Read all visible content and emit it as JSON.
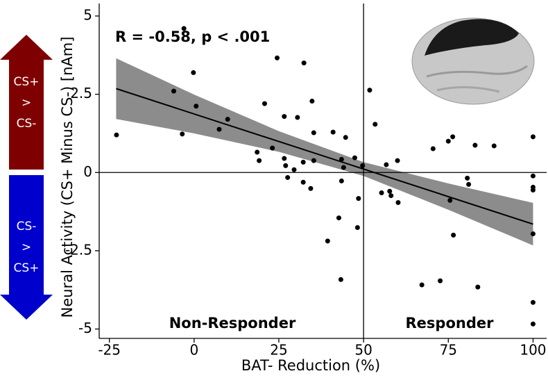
{
  "chart_data": {
    "type": "scatter",
    "annotation": "R = -0.58, p < .001",
    "xlabel": "BAT- Reduction (%)",
    "ylabel": "Neural Activity (CS+ Minus CS-) [nAm]",
    "region_labels": [
      "Non-Responder",
      "Responder"
    ],
    "arrows": [
      {
        "lines": [
          "CS+",
          ">",
          "CS-"
        ],
        "color": "#7f0000"
      },
      {
        "lines": [
          "CS-",
          ">",
          "CS+"
        ],
        "color": "#0000cc"
      }
    ],
    "color": "#000000",
    "band_color": "#8c8c8c",
    "xlim": [
      -28,
      104
    ],
    "ylim": [
      -5.3,
      5.4
    ],
    "xticks": [
      -25,
      0,
      25,
      50,
      75,
      100
    ],
    "yticks": [
      5,
      2.5,
      0,
      -2.5,
      -5
    ],
    "reference_x": 50,
    "reference_y": 0,
    "fit": {
      "x": [
        -23,
        100
      ],
      "y": [
        2.68,
        -1.65
      ]
    },
    "confidence_band": {
      "x": [
        -23,
        0,
        25,
        50,
        75,
        100
      ],
      "upper": [
        3.65,
        2.49,
        1.32,
        0.33,
        -0.35,
        -0.97
      ],
      "lower": [
        1.71,
        1.25,
        0.66,
        -0.11,
        -1.19,
        -2.33
      ]
    },
    "x": [
      -22.9,
      -6,
      -3.5,
      -0.2,
      0.6,
      -3,
      7.4,
      9.9,
      18.6,
      19.2,
      20.8,
      23.1,
      24.5,
      26.6,
      26.6,
      27,
      27.6,
      29.5,
      30.5,
      32.2,
      32.2,
      32.4,
      34.4,
      34.8,
      35.3,
      35.3,
      39.4,
      41,
      42.7,
      43.5,
      43.5,
      43.3,
      44.1,
      44.7,
      47.4,
      48.2,
      48.5,
      49.7,
      51.8,
      53.4,
      55.3,
      56.7,
      57.7,
      58.1,
      60,
      60.2,
      67.2,
      70.5,
      72.6,
      75,
      76.3,
      75.5,
      76.5,
      80.6,
      81,
      82.9,
      83.7,
      88.5,
      100,
      100,
      100,
      100,
      100,
      100,
      100
    ],
    "values": [
      1.2,
      2.6,
      1.23,
      3.19,
      2.12,
      4.6,
      1.38,
      1.7,
      0.65,
      0.38,
      2.2,
      0.78,
      3.66,
      1.79,
      0.45,
      0.22,
      -0.16,
      0.09,
      1.76,
      -0.31,
      0.33,
      3.5,
      -0.51,
      2.28,
      1.27,
      0.38,
      -2.19,
      1.29,
      -1.45,
      0.42,
      -0.27,
      -3.42,
      0.16,
      1.12,
      0.47,
      -1.76,
      -0.83,
      0.22,
      2.63,
      1.54,
      -0.65,
      0.25,
      -0.6,
      -0.74,
      0.38,
      -0.96,
      -3.59,
      0.76,
      -3.46,
      1.0,
      1.14,
      -0.89,
      -2.0,
      -0.18,
      -0.38,
      0.87,
      -3.66,
      0.85,
      1.14,
      -0.11,
      -0.47,
      -0.56,
      -1.96,
      -4.15,
      -4.84
    ]
  }
}
